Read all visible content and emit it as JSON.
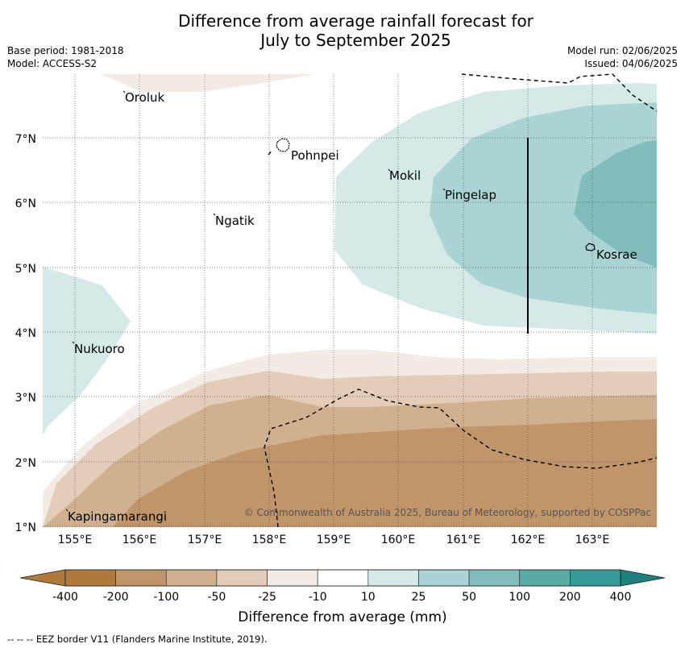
{
  "title_line1": "Difference from average rainfall forecast for",
  "title_line2": "July to September 2025",
  "base_period": "Base period: 1981-2018",
  "model": "Model: ACCESS-S2",
  "model_run": "Model run: 02/06/2025",
  "issued": "Issued: 04/06/2025",
  "copyright": "© Commonwealth of Australia 2025, Bureau of Meteorology, supported by COSPPac",
  "lat_labels": [
    "7°N",
    "6°N",
    "5°N",
    "4°N",
    "3°N",
    "2°N",
    "1°N"
  ],
  "lon_labels": [
    "155°E",
    "156°E",
    "157°E",
    "158°E",
    "159°E",
    "160°E",
    "161°E",
    "162°E",
    "163°E"
  ],
  "places": [
    {
      "name": "Oroluk"
    },
    {
      "name": "Pohnpei"
    },
    {
      "name": "Mokil"
    },
    {
      "name": "Pingelap"
    },
    {
      "name": "Ngatik"
    },
    {
      "name": "Kosrae"
    },
    {
      "name": "Nukuoro"
    },
    {
      "name": "Kapingamarangi"
    }
  ],
  "colorbar": {
    "tick_labels": [
      "-400",
      "-200",
      "-100",
      "-50",
      "-25",
      "-10",
      "10",
      "25",
      "50",
      "100",
      "200",
      "400"
    ],
    "colors": [
      "#b07a3c",
      "#c0956a",
      "#d1b08f",
      "#e3cdb9",
      "#f3ebe5",
      "#ffffff",
      "#d4e9e8",
      "#a9d4d3",
      "#80bdbc",
      "#5aaaa8",
      "#369b98",
      "#1f7f7c"
    ],
    "label": "Difference from average (mm)"
  },
  "footer": "-- -- -- EEZ border V11 (Flanders Marine Institute, 2019)."
}
